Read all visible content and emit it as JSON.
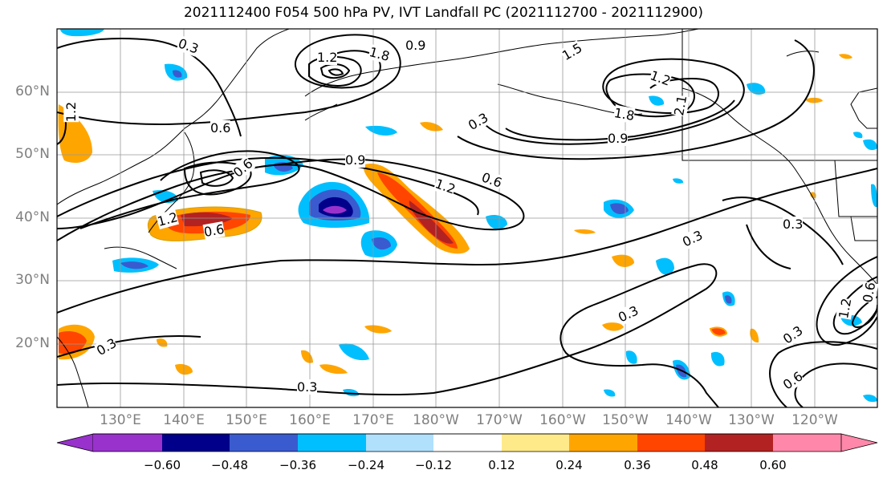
{
  "title": "2021112400 F054 500 hPa PV, IVT Landfall PC (2021112700 - 2021112900)",
  "latitude_labels": [
    "60°N",
    "50°N",
    "40°N",
    "30°N",
    "20°N"
  ],
  "longitude_labels": [
    "130°E",
    "140°E",
    "150°E",
    "160°E",
    "170°E",
    "180°W",
    "170°W",
    "160°W",
    "150°W",
    "140°W",
    "130°W",
    "120°W"
  ],
  "contour_labels": [
    "0.3",
    "0.9",
    "1.2",
    "1.8",
    "1.5",
    "1.2",
    "0.6",
    "0.3",
    "1.8",
    "2.1",
    "0.9",
    "1.2",
    "0.6",
    "0.9",
    "1.2",
    "0.6",
    "1.2",
    "0.6",
    "0.3",
    "0.3",
    "0.3",
    "0.3",
    "0.3",
    "0.3",
    "0.6",
    "0.6",
    "1.2"
  ],
  "colorbar": {
    "ticks": [
      "−0.60",
      "−0.48",
      "−0.36",
      "−0.24",
      "−0.12",
      "0.12",
      "0.24",
      "0.36",
      "0.48",
      "0.60"
    ],
    "colors": [
      "#9932cc",
      "#00008b",
      "#3a5bcf",
      "#00bfff",
      "#b0e0fc",
      "#ffffff",
      "#ffea8a",
      "#ffa500",
      "#ff4500",
      "#b22222",
      "#ff88aa"
    ]
  }
}
